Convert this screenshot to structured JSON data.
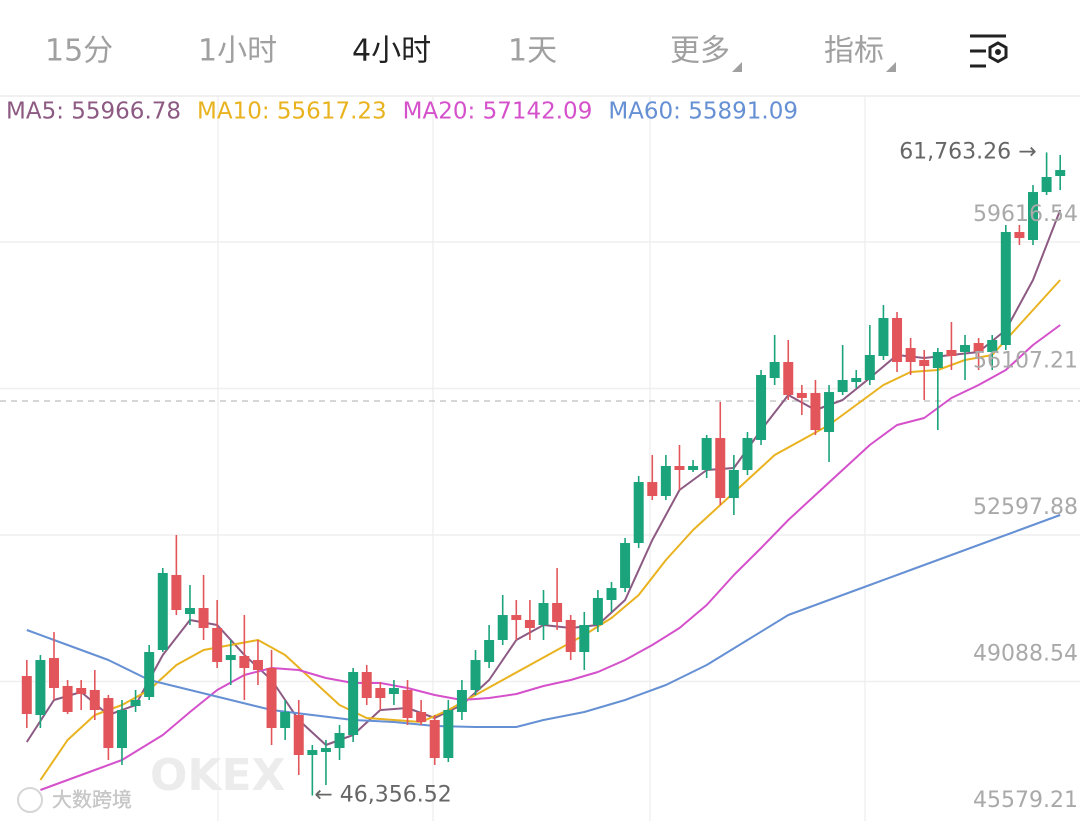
{
  "tabs": [
    {
      "label": "15分"
    },
    {
      "label": "1小时"
    },
    {
      "label": "4小时",
      "active": true
    },
    {
      "label": "1天"
    },
    {
      "label": "更多",
      "dropdown": true
    },
    {
      "label": "指标",
      "dropdown": true
    }
  ],
  "watermarks": [
    "OKEX",
    "大数跨境"
  ],
  "chart_data": {
    "type": "candlestick",
    "categories": [
      null,
      null,
      null,
      null,
      null,
      null,
      null,
      null,
      null,
      null,
      null,
      null,
      null,
      null,
      null,
      null,
      null,
      null,
      null,
      null,
      null,
      null,
      null,
      null,
      null,
      null,
      null,
      null,
      null,
      null,
      null,
      null,
      null,
      null,
      null,
      null,
      null,
      null,
      null,
      null,
      null,
      null,
      null,
      null,
      null,
      null,
      null,
      null,
      null,
      null,
      null,
      null,
      null,
      null,
      null,
      null,
      null,
      null,
      null,
      null,
      null,
      null,
      null,
      null,
      null,
      null,
      null,
      null,
      null,
      null,
      null,
      null,
      null,
      null,
      null,
      null,
      null
    ],
    "open": [
      49220,
      48286,
      49651,
      48981,
      48933,
      48885,
      48693,
      47495,
      48502,
      48717,
      49843,
      51640,
      50705,
      50849,
      50370,
      49603,
      49699,
      49603,
      49412,
      47975,
      48286,
      47328,
      47400,
      47495,
      47807,
      49316,
      48933,
      48789,
      48885,
      48358,
      48166,
      47256,
      48358,
      48885,
      49556,
      50083,
      50681,
      50562,
      50442,
      50969,
      50562,
      49795,
      50442,
      51041,
      51328,
      52406,
      53867,
      53532,
      54251,
      54155,
      54155,
      54921,
      53484,
      54155,
      54874,
      56359,
      56742,
      56000,
      56000,
      55065,
      56023,
      56263,
      56311,
      56886,
      57796,
      57077,
      56790,
      56598,
      57030,
      56982,
      57197,
      56982,
      57149,
      59856,
      59665,
      60814,
      61198
    ],
    "high": [
      49603,
      49723,
      50274,
      49124,
      49124,
      49364,
      48765,
      48645,
      48885,
      49963,
      51807,
      52598,
      51400,
      51640,
      51041,
      50083,
      50681,
      50083,
      49843,
      48645,
      48645,
      47567,
      47687,
      48046,
      49412,
      49484,
      49076,
      49124,
      49124,
      48645,
      48286,
      48645,
      49124,
      49843,
      50442,
      51161,
      51041,
      51041,
      51280,
      51807,
      50681,
      50753,
      51280,
      51472,
      52526,
      54011,
      54514,
      54514,
      54754,
      54394,
      54993,
      55784,
      54514,
      55065,
      56550,
      57389,
      57269,
      56191,
      56311,
      56191,
      57149,
      56550,
      57628,
      58108,
      57940,
      57317,
      57030,
      57077,
      57700,
      57389,
      57317,
      57389,
      60024,
      60024,
      60982,
      61763.26,
      61701
    ],
    "low": [
      47975,
      47975,
      48645,
      48310,
      48406,
      48166,
      47208,
      47088,
      48358,
      48645,
      49795,
      50681,
      50442,
      50083,
      49412,
      49005,
      48645,
      49005,
      47567,
      47687,
      46849,
      46356.52,
      46609,
      47208,
      47639,
      48526,
      48406,
      48526,
      48046,
      48046,
      47088,
      47160,
      48166,
      48765,
      49412,
      49963,
      50083,
      50083,
      50083,
      50322,
      49603,
      49364,
      50274,
      50753,
      51232,
      52286,
      53436,
      53436,
      53676,
      54107,
      53963,
      53316,
      53077,
      54035,
      54754,
      56191,
      55832,
      55472,
      54993,
      54347,
      55952,
      56119,
      56191,
      56790,
      56503,
      56431,
      55832,
      55113,
      56550,
      56311,
      56550,
      56550,
      57030,
      59545,
      59545,
      60743,
      60862
    ],
    "close": [
      48310,
      49603,
      48933,
      48358,
      48789,
      48406,
      47495,
      48406,
      48645,
      49795,
      51688,
      50801,
      50849,
      50370,
      49556,
      49723,
      49412,
      49364,
      47975,
      48358,
      47328,
      47447,
      47495,
      47855,
      49316,
      48693,
      48693,
      48933,
      48214,
      48118,
      47256,
      48406,
      48885,
      49603,
      50083,
      50681,
      50562,
      50370,
      50969,
      50514,
      49795,
      50442,
      51089,
      51328,
      52406,
      53867,
      53532,
      54251,
      54155,
      54251,
      54921,
      53484,
      54155,
      54921,
      56431,
      56742,
      55952,
      55880,
      55113,
      56023,
      56311,
      56359,
      56910,
      57796,
      56742,
      56742,
      56646,
      56982,
      56886,
      57149,
      56982,
      57269,
      59856,
      59712,
      60814,
      61174,
      61341
    ],
    "up_color": "#1ba37c",
    "down_color": "#e2565b",
    "ylim": [
      45579.21,
      63114.27
    ],
    "yticks": [
      59616.54,
      56107.21,
      52597.88,
      49088.54,
      45579.21
    ],
    "grid": true,
    "price_line": 55808,
    "series": [
      {
        "name": "MA5: 55966.78",
        "color": "#8c5a82",
        "x": [
          0,
          2,
          4,
          6,
          8,
          10,
          12,
          14,
          16,
          18,
          20,
          22,
          24,
          26,
          28,
          30,
          32,
          34,
          36,
          38,
          40,
          42,
          44,
          46,
          48,
          50,
          52,
          54,
          56,
          58,
          60,
          62,
          64,
          66,
          68,
          70,
          72,
          74,
          76
        ],
        "values": [
          47639,
          48645,
          48837,
          48286,
          48526,
          49723,
          50562,
          50442,
          49723,
          49124,
          48166,
          47567,
          47807,
          48406,
          48454,
          48214,
          48526,
          49124,
          50083,
          50442,
          50370,
          50442,
          51041,
          52478,
          53676,
          54155,
          54203,
          55113,
          55952,
          55592,
          55832,
          56359,
          56910,
          56838,
          56910,
          56982,
          57509,
          58706,
          60383
        ]
      },
      {
        "name": "MA10: 55617.23",
        "color": "#e9b21f",
        "x": [
          1,
          3,
          5,
          7,
          9,
          11,
          13,
          15,
          17,
          19,
          21,
          23,
          25,
          27,
          29,
          31,
          33,
          35,
          37,
          39,
          41,
          43,
          45,
          47,
          49,
          51,
          53,
          55,
          57,
          59,
          61,
          63,
          65,
          67,
          69,
          71,
          73,
          75,
          76
        ],
        "values": [
          46729,
          47687,
          48286,
          48526,
          48885,
          49484,
          49843,
          49963,
          50083,
          49723,
          49124,
          48526,
          48214,
          48166,
          48118,
          48406,
          48765,
          49124,
          49484,
          49843,
          50202,
          50610,
          51161,
          51999,
          52718,
          53316,
          53915,
          54514,
          54874,
          55233,
          55712,
          56191,
          56503,
          56550,
          56790,
          56910,
          57628,
          58347,
          58706
        ]
      },
      {
        "name": "MA20: 57142.09",
        "color": "#d551cb",
        "x": [
          1,
          4,
          7,
          10,
          12,
          14,
          16,
          18,
          20,
          22,
          24,
          26,
          28,
          30,
          32,
          34,
          36,
          38,
          40,
          42,
          44,
          46,
          48,
          50,
          52,
          54,
          56,
          58,
          60,
          62,
          64,
          66,
          68,
          70,
          72,
          74,
          76
        ],
        "values": [
          46489,
          46849,
          47208,
          47807,
          48358,
          48885,
          49244,
          49412,
          49364,
          49172,
          49053,
          49053,
          48933,
          48765,
          48645,
          48693,
          48789,
          48981,
          49124,
          49316,
          49603,
          49963,
          50370,
          50921,
          51640,
          52286,
          52957,
          53556,
          54155,
          54754,
          55233,
          55401,
          55880,
          56191,
          56550,
          57149,
          57628
        ]
      },
      {
        "name": "MA60: 55891.09",
        "color": "#6690d4",
        "x": [
          0,
          3,
          6,
          9,
          12,
          15,
          18,
          21,
          24,
          27,
          30,
          33,
          36,
          38,
          41,
          44,
          47,
          50,
          53,
          56,
          59,
          62,
          65,
          68,
          71,
          74,
          76
        ],
        "values": [
          50322,
          49963,
          49603,
          49124,
          48885,
          48645,
          48406,
          48286,
          48166,
          48118,
          48022,
          47998,
          47998,
          48166,
          48358,
          48645,
          49005,
          49484,
          50083,
          50681,
          51041,
          51400,
          51759,
          52119,
          52478,
          52837,
          53077
        ]
      }
    ],
    "annotations": [
      {
        "value": 61763.26,
        "label": "61,763.26 →"
      },
      {
        "value": 46356.52,
        "label": "← 46,356.52"
      }
    ]
  }
}
